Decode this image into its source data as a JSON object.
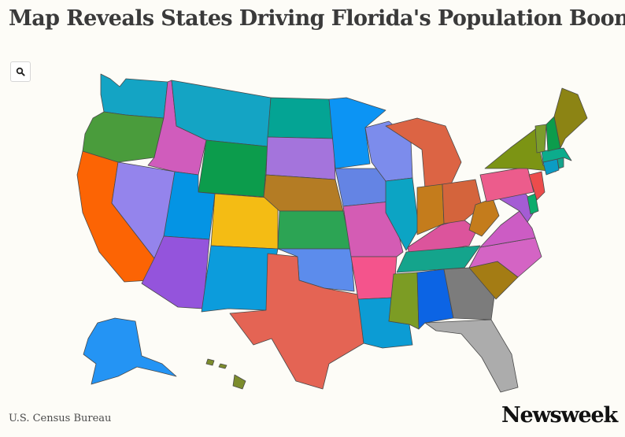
{
  "title": "Map Reveals States Driving Florida's Population Boom",
  "search_icon": "search-icon",
  "source": "U.S. Census Bureau",
  "logo": "Newsweek",
  "states": [
    {
      "id": "WA",
      "color": "#14a4c4"
    },
    {
      "id": "OR",
      "color": "#4a9c3c"
    },
    {
      "id": "CA",
      "color": "#fc6404"
    },
    {
      "id": "NV",
      "color": "#9484ec"
    },
    {
      "id": "ID",
      "color": "#d05cbc"
    },
    {
      "id": "MT",
      "color": "#14a4c4"
    },
    {
      "id": "WY",
      "color": "#0c9c4c"
    },
    {
      "id": "UT",
      "color": "#0494e4"
    },
    {
      "id": "CO",
      "color": "#f4bc14"
    },
    {
      "id": "AZ",
      "color": "#9454dc"
    },
    {
      "id": "NM",
      "color": "#0c9cdc"
    },
    {
      "id": "ND",
      "color": "#04a494"
    },
    {
      "id": "SD",
      "color": "#a474dc"
    },
    {
      "id": "NE",
      "color": "#b47c24"
    },
    {
      "id": "KS",
      "color": "#2ca454"
    },
    {
      "id": "OK",
      "color": "#5c8cec"
    },
    {
      "id": "TX",
      "color": "#e46454"
    },
    {
      "id": "MN",
      "color": "#0c94f4"
    },
    {
      "id": "IA",
      "color": "#6484e4"
    },
    {
      "id": "MO",
      "color": "#d45cb4"
    },
    {
      "id": "AR",
      "color": "#f4548c"
    },
    {
      "id": "LA",
      "color": "#0c9cd4"
    },
    {
      "id": "WI",
      "color": "#7c8cec"
    },
    {
      "id": "IL",
      "color": "#0ca4c4"
    },
    {
      "id": "MS",
      "color": "#7c9c24"
    },
    {
      "id": "MI",
      "color": "#dc6444"
    },
    {
      "id": "IN",
      "color": "#c47c1c"
    },
    {
      "id": "KY",
      "color": "#dc549c"
    },
    {
      "id": "TN",
      "color": "#14a48c"
    },
    {
      "id": "AL",
      "color": "#0c64e4"
    },
    {
      "id": "OH",
      "color": "#d4643c"
    },
    {
      "id": "WV",
      "color": "#c47c1c"
    },
    {
      "id": "GA",
      "color": "#7c7c7c"
    },
    {
      "id": "FL",
      "color": "#acacac"
    },
    {
      "id": "SC",
      "color": "#a47c14"
    },
    {
      "id": "NC",
      "color": "#d464c4"
    },
    {
      "id": "VA",
      "color": "#cc5cc4"
    },
    {
      "id": "MD",
      "color": "#a45cd4"
    },
    {
      "id": "DE",
      "color": "#0cac6c"
    },
    {
      "id": "PA",
      "color": "#ec5c8c"
    },
    {
      "id": "NJ",
      "color": "#ec4c4c"
    },
    {
      "id": "NY",
      "color": "#7c9414"
    },
    {
      "id": "CT",
      "color": "#0c9cc4"
    },
    {
      "id": "RI",
      "color": "#14a48c"
    },
    {
      "id": "MA",
      "color": "#0cac8c"
    },
    {
      "id": "VT",
      "color": "#7c9c2c"
    },
    {
      "id": "NH",
      "color": "#0c9c4c"
    },
    {
      "id": "ME",
      "color": "#8c8414"
    },
    {
      "id": "AK",
      "color": "#2494f4"
    },
    {
      "id": "HI",
      "color": "#7c8c2c"
    }
  ]
}
